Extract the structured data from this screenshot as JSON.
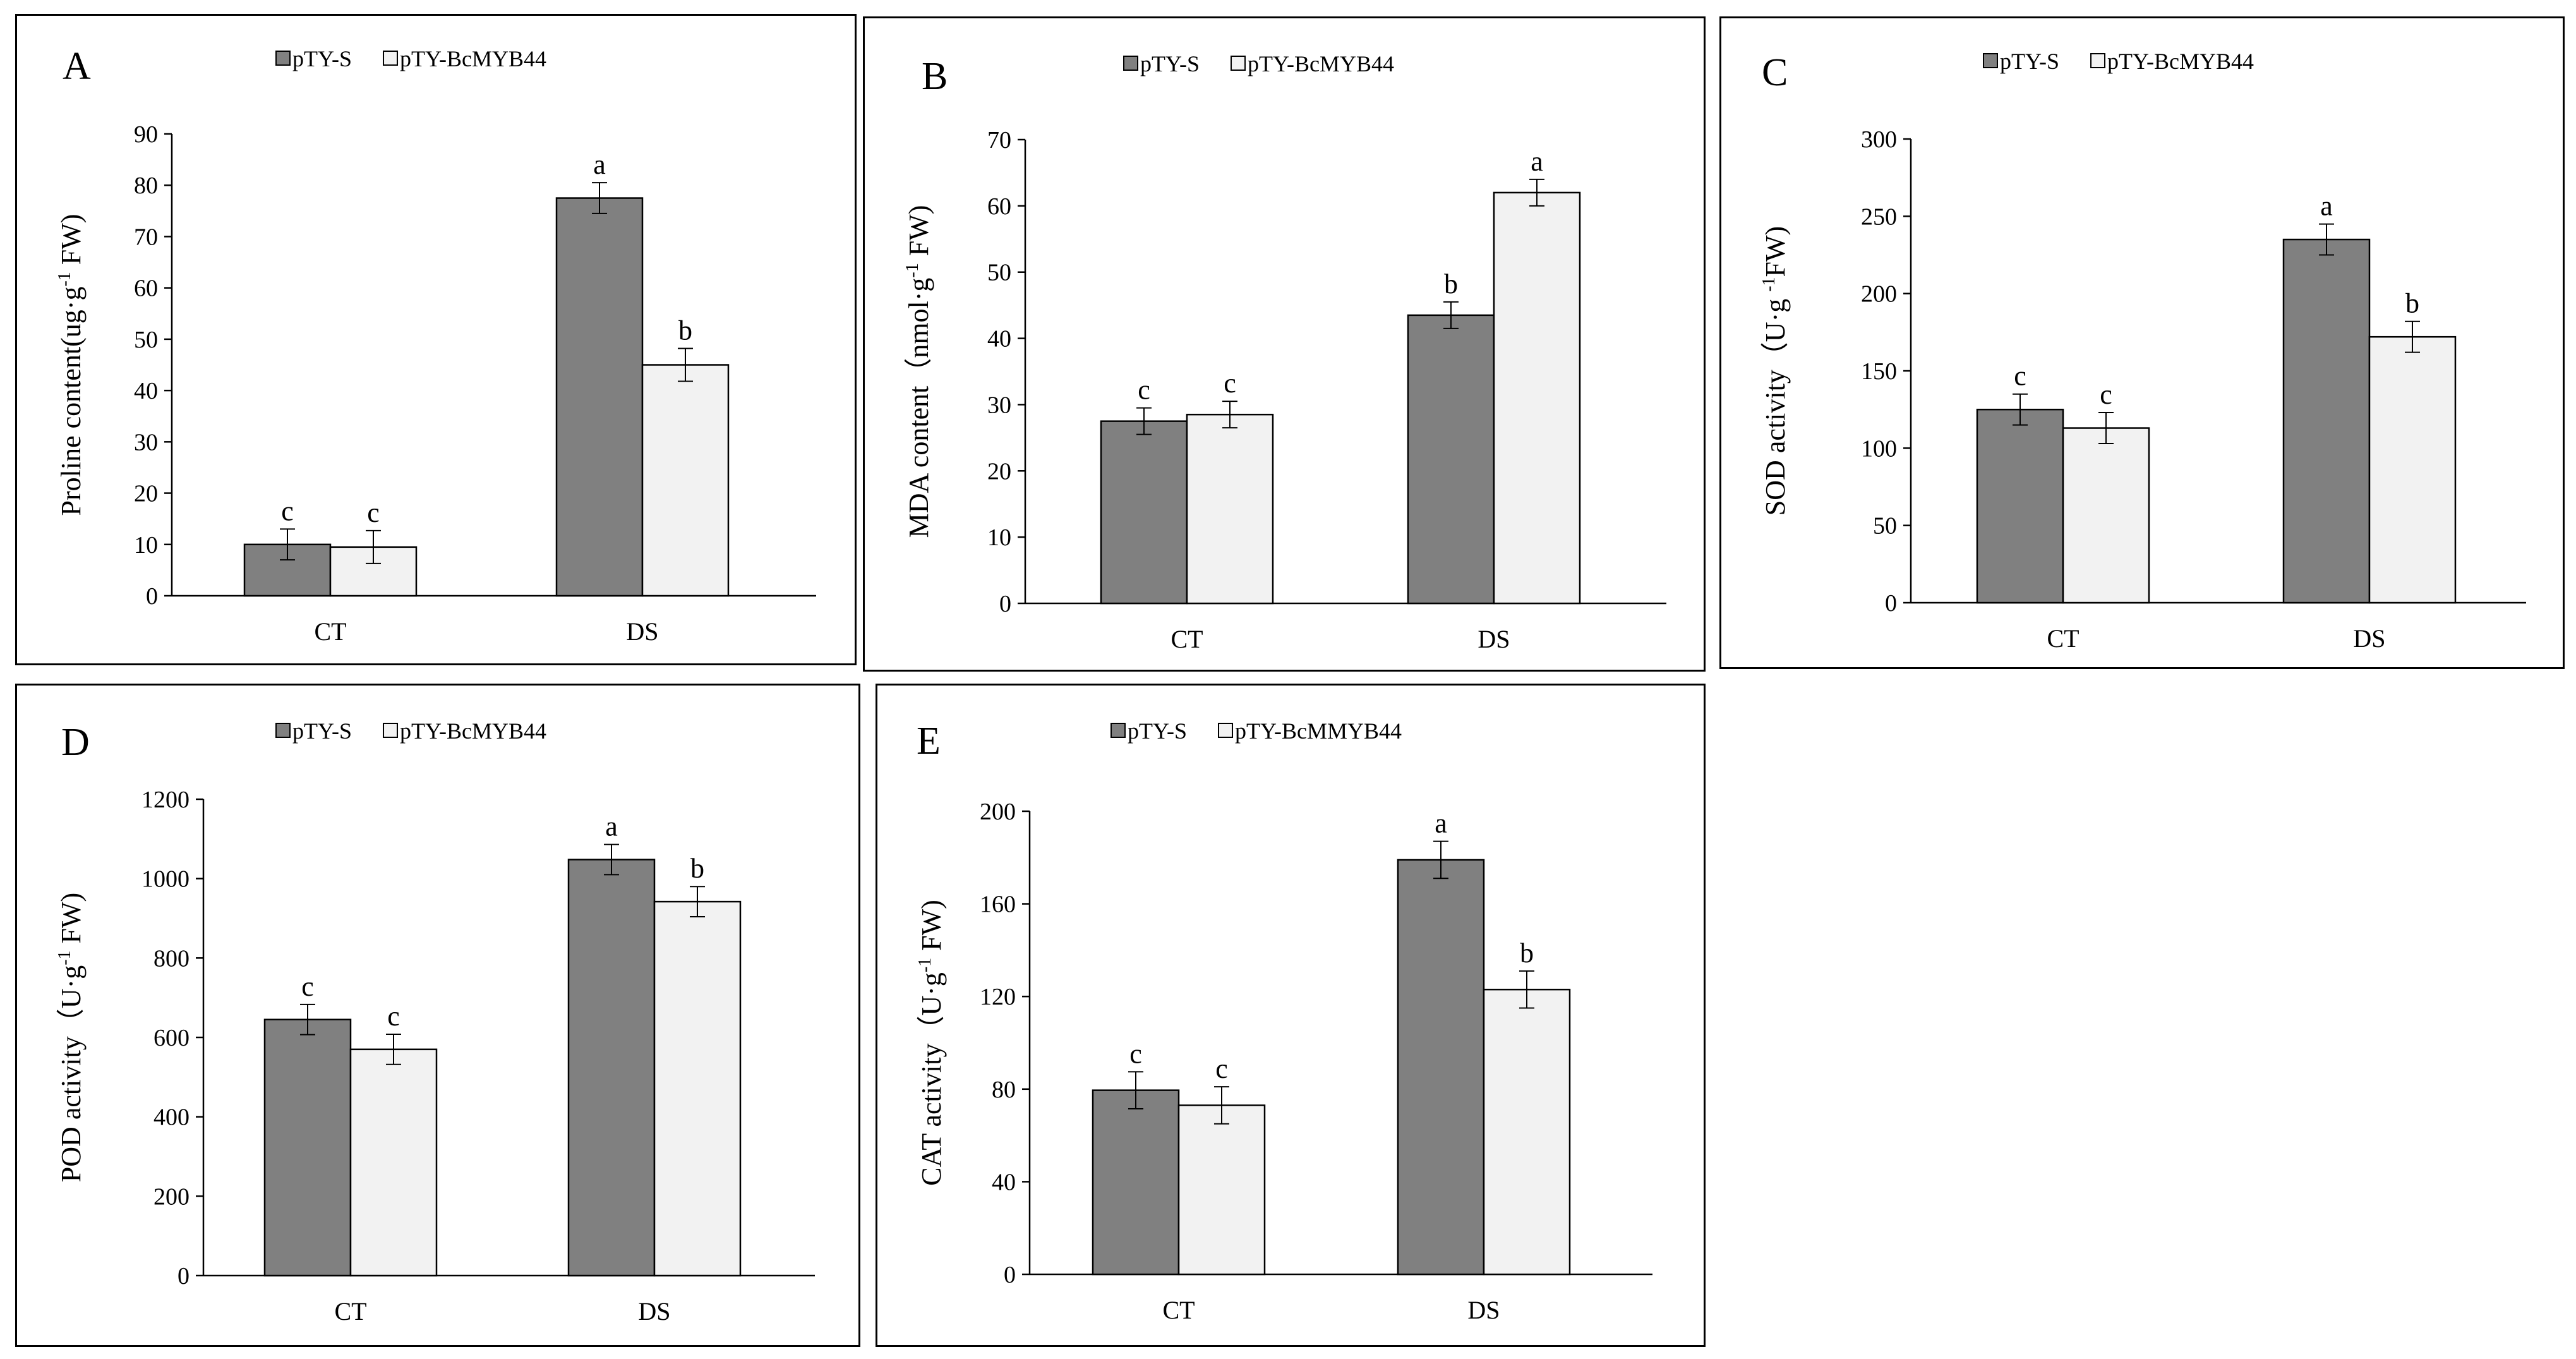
{
  "colors": {
    "series1": "#808080",
    "series2": "#f2f2f2",
    "stroke": "#000000"
  },
  "chart_data": [
    {
      "panel": "A",
      "type": "bar",
      "categories": [
        "CT",
        "DS"
      ],
      "series": [
        {
          "name": "pTY-S",
          "values": [
            10,
            77.5
          ],
          "errors": [
            3,
            3
          ],
          "letters": [
            "c",
            "a"
          ]
        },
        {
          "name": "pTY-BcMYB44",
          "values": [
            9.5,
            45
          ],
          "errors": [
            3.2,
            3.2
          ],
          "letters": [
            "c",
            "b"
          ]
        }
      ],
      "ylabel": "Proline content(ug·g-1 FW)",
      "ylabel_parts": {
        "pre": "Proline content(ug·g",
        "sup": "-1",
        "post": " FW)"
      },
      "ylim": [
        0,
        90
      ],
      "yticks": [
        "0",
        "10",
        "20",
        "30",
        "40",
        "50",
        "60",
        "70",
        "80",
        "90"
      ]
    },
    {
      "panel": "B",
      "type": "bar",
      "categories": [
        "CT",
        "DS"
      ],
      "series": [
        {
          "name": "pTY-S",
          "values": [
            27.5,
            43.5
          ],
          "errors": [
            2,
            2
          ],
          "letters": [
            "c",
            "b"
          ]
        },
        {
          "name": "pTY-BcMYB44",
          "values": [
            28.5,
            62
          ],
          "errors": [
            2,
            2
          ],
          "letters": [
            "c",
            "a"
          ]
        }
      ],
      "ylabel": "MDA content（nmol·g-1 FW)",
      "ylabel_parts": {
        "pre": "MDA content（nmol·g",
        "sup": "-1",
        "post": " FW)"
      },
      "ylim": [
        0,
        70
      ],
      "yticks": [
        "0",
        "10",
        "20",
        "30",
        "40",
        "50",
        "60",
        "70"
      ]
    },
    {
      "panel": "C",
      "type": "bar",
      "categories": [
        "CT",
        "DS"
      ],
      "series": [
        {
          "name": "pTY-S",
          "values": [
            125,
            235
          ],
          "errors": [
            10,
            10
          ],
          "letters": [
            "c",
            "a"
          ]
        },
        {
          "name": "pTY-BcMYB44",
          "values": [
            113,
            172
          ],
          "errors": [
            10,
            10
          ],
          "letters": [
            "c",
            "b"
          ]
        }
      ],
      "ylabel": "SOD activity（U·g -1FW)",
      "ylabel_parts": {
        "pre": "SOD activity（U·g ",
        "sup": "-1",
        "post": "FW)"
      },
      "ylim": [
        0,
        300
      ],
      "yticks": [
        "0",
        "50",
        "100",
        "150",
        "200",
        "250",
        "300"
      ]
    },
    {
      "panel": "D",
      "type": "bar",
      "categories": [
        "CT",
        "DS"
      ],
      "series": [
        {
          "name": "pTY-S",
          "values": [
            645,
            1048
          ],
          "errors": [
            38,
            38
          ],
          "letters": [
            "c",
            "a"
          ]
        },
        {
          "name": "pTY-BcMYB44",
          "values": [
            570,
            942
          ],
          "errors": [
            38,
            38
          ],
          "letters": [
            "c",
            "b"
          ]
        }
      ],
      "ylabel": "POD activity（U·g-1 FW)",
      "ylabel_parts": {
        "pre": "POD activity（U·g",
        "sup": "-1",
        "post": " FW)"
      },
      "ylim": [
        0,
        1200
      ],
      "yticks": [
        "0",
        "200",
        "400",
        "600",
        "800",
        "1000",
        "1200"
      ]
    },
    {
      "panel": "E",
      "type": "bar",
      "categories": [
        "CT",
        "DS"
      ],
      "series": [
        {
          "name": "pTY-S",
          "values": [
            79.5,
            179
          ],
          "errors": [
            8,
            8
          ],
          "letters": [
            "c",
            "a"
          ]
        },
        {
          "name": "pTY-BcMMYB44",
          "values": [
            73,
            123
          ],
          "errors": [
            8,
            8
          ],
          "letters": [
            "c",
            "b"
          ]
        }
      ],
      "ylabel": "CAT activity（U·g-1 FW)",
      "ylabel_parts": {
        "pre": "CAT activity（U·g",
        "sup": "-1",
        "post": " FW)"
      },
      "ylim": [
        0,
        200
      ],
      "yticks": [
        "0",
        "40",
        "80",
        "120",
        "160",
        "200"
      ]
    }
  ]
}
